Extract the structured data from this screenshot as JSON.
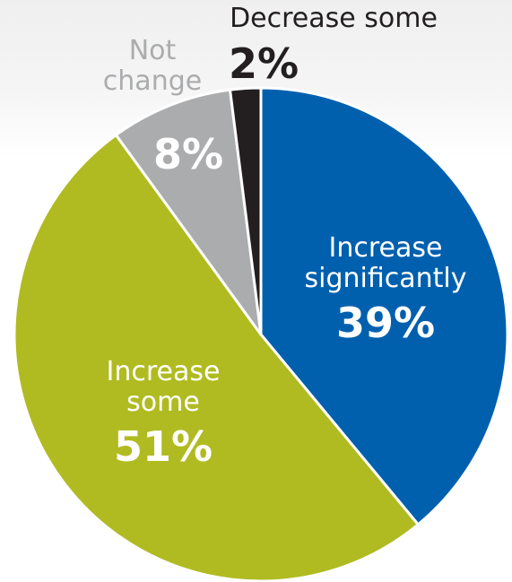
{
  "chart_data": {
    "type": "pie",
    "slices": [
      {
        "label_lines": [
          "Increase",
          "significantly"
        ],
        "value_label": "39%",
        "value": 39,
        "color": "#0060ae",
        "label_color": "#ffffff"
      },
      {
        "label_lines": [
          "Increase",
          "some"
        ],
        "value_label": "51%",
        "value": 51,
        "color": "#b0bb21",
        "label_color": "#ffffff"
      },
      {
        "label_lines": [
          "Not",
          "change"
        ],
        "value_label": "8%",
        "value": 8,
        "color": "#abacae",
        "label_color": "#abacae",
        "value_color": "#ffffff"
      },
      {
        "label_lines": [
          "Decrease some"
        ],
        "value_label": "2%",
        "value": 2,
        "color": "#231f20",
        "label_color": "#231f20",
        "value_color": "#231f20"
      }
    ]
  }
}
